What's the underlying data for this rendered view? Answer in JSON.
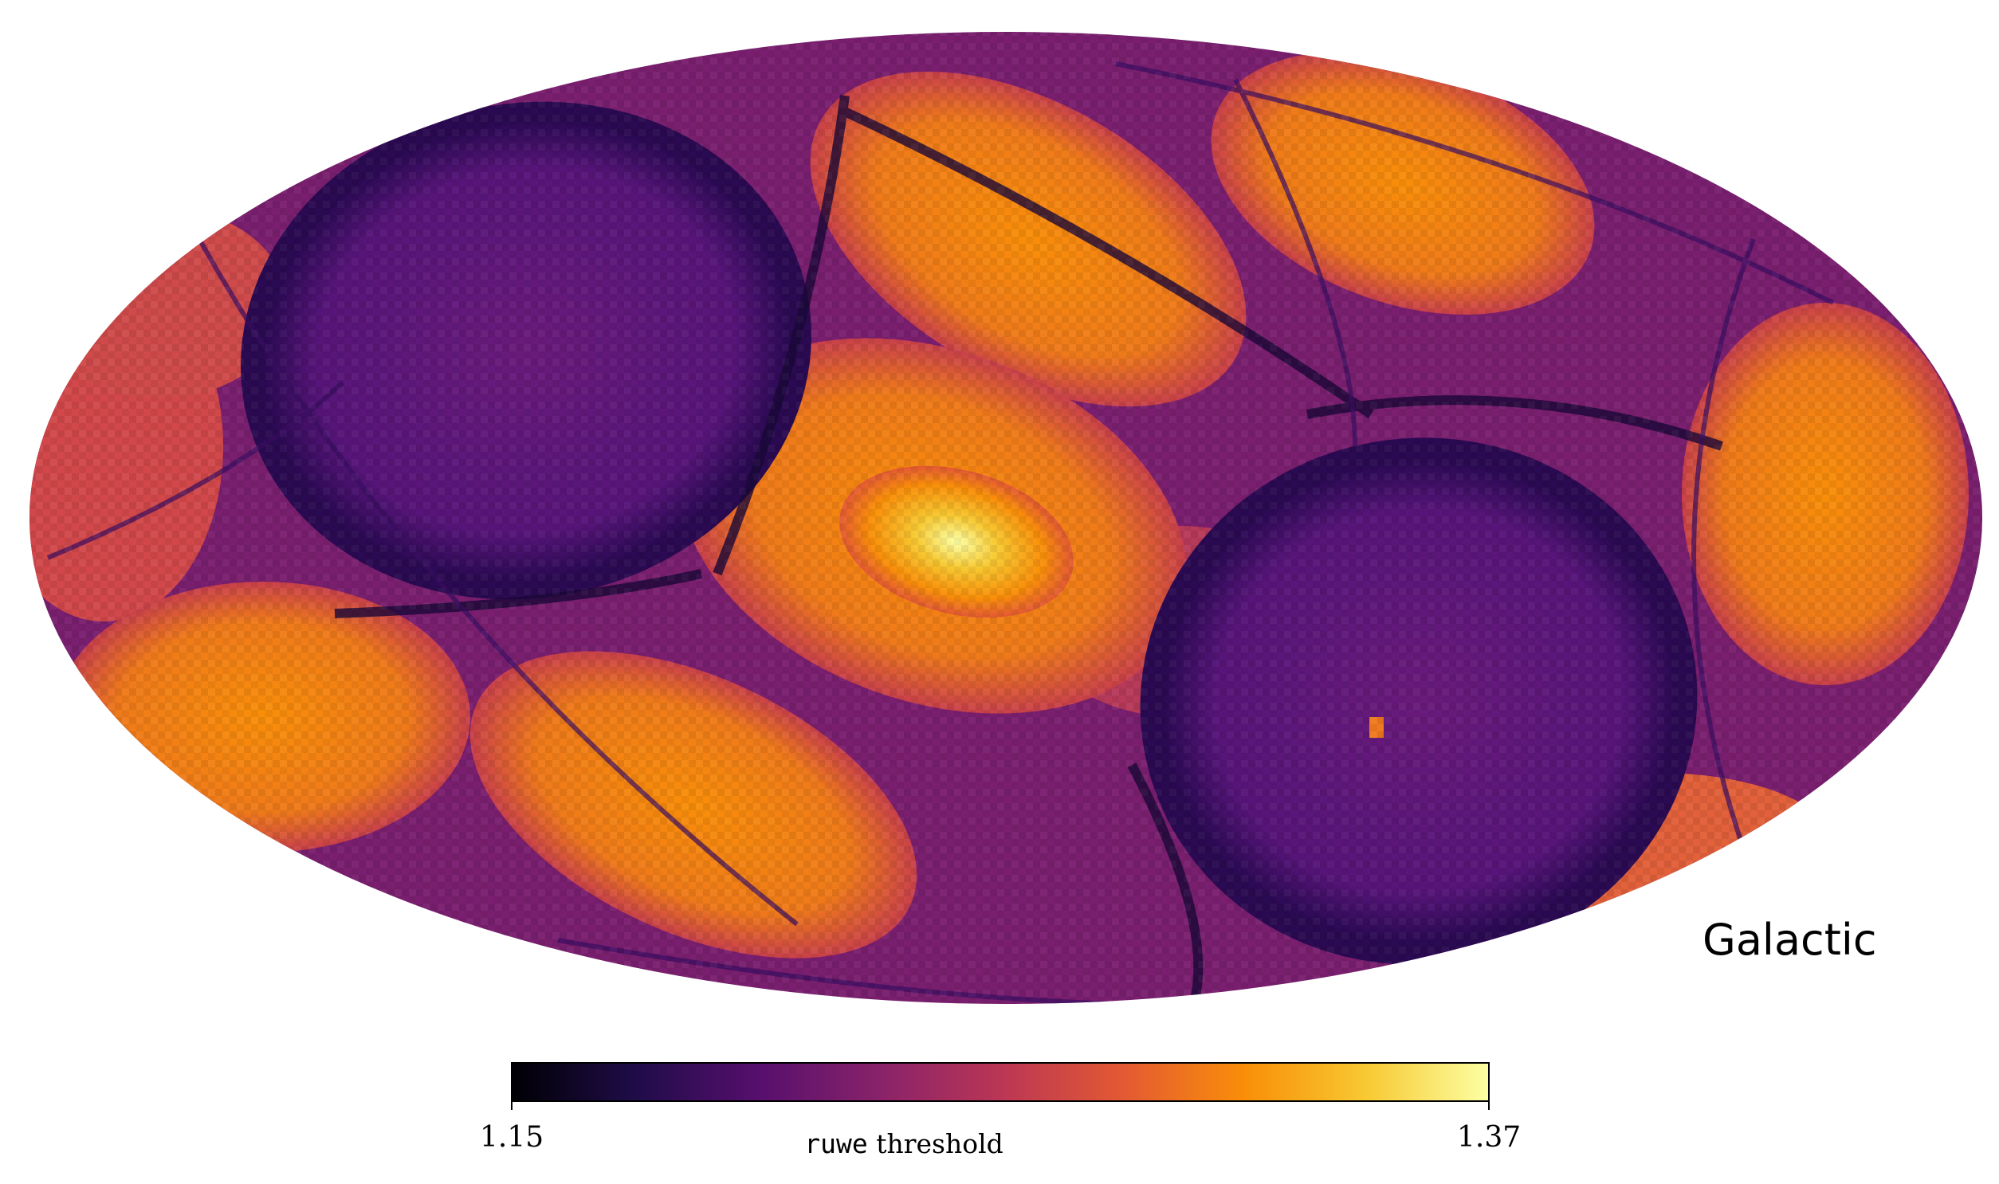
{
  "map": {
    "projection": "Mollweide",
    "coordinate_system_label": "Galactic",
    "colormap": "inferno"
  },
  "colorbar": {
    "min_label": "1.15",
    "max_label": "1.37",
    "title_code": "ruwe",
    "title_text": " threshold",
    "stops": [
      "#000004",
      "#1f0c48",
      "#550f6d",
      "#88226a",
      "#ba3655",
      "#e35933",
      "#f98e09",
      "#f8c932",
      "#fcffa4"
    ]
  }
}
